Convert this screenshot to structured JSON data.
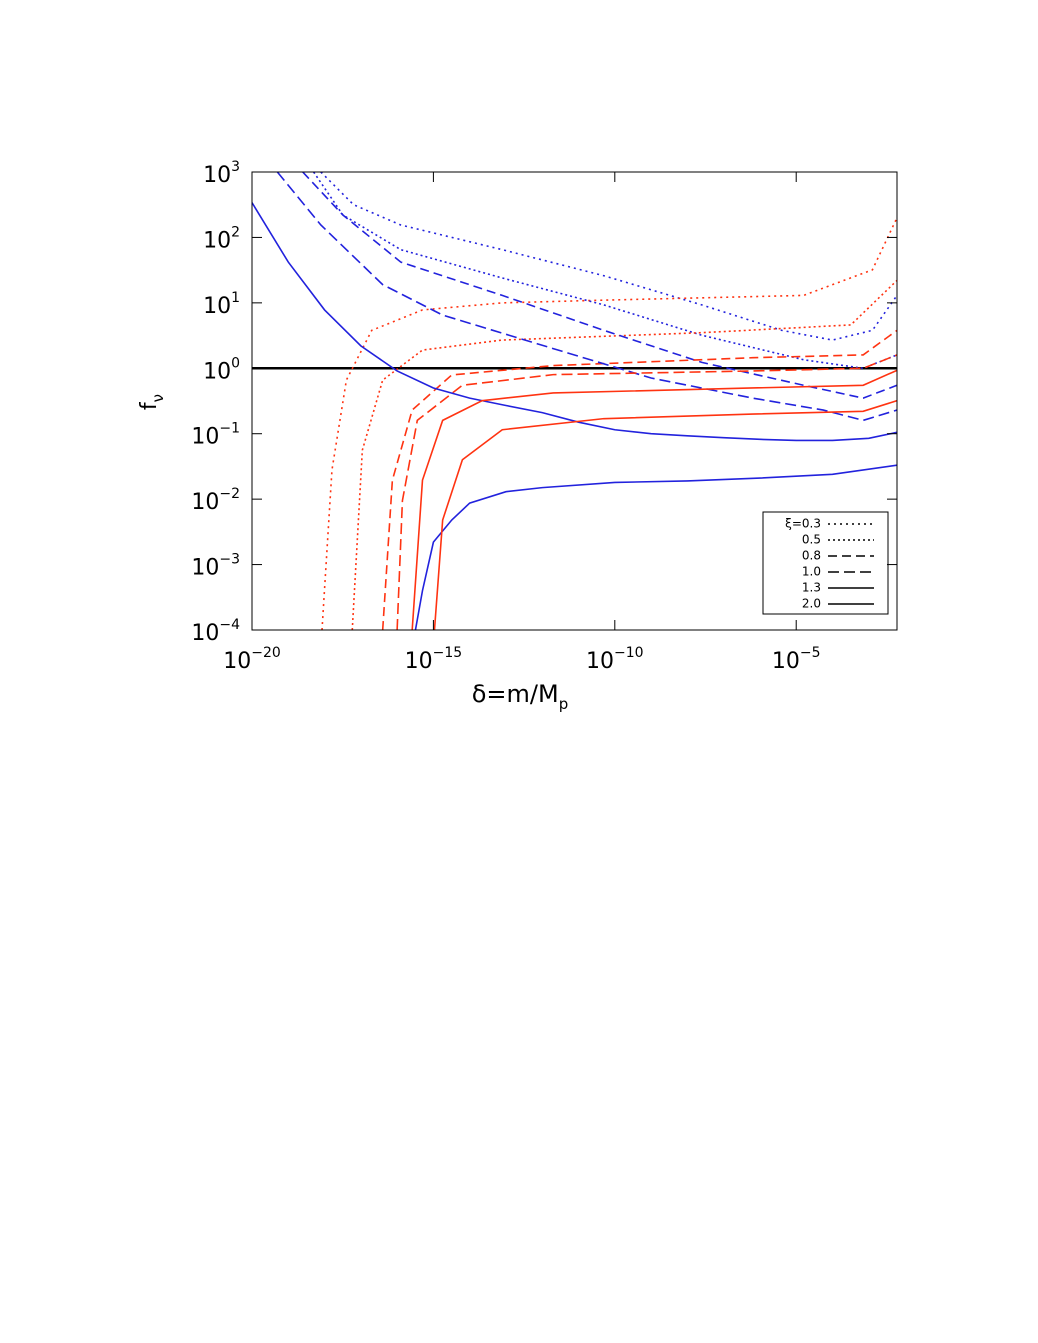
{
  "chart_data": {
    "type": "line",
    "xlabel": {
      "text": "δ=m/M",
      "sub": "p"
    },
    "ylabel": {
      "text": "f",
      "sub": "ν"
    },
    "xscale": "log",
    "yscale": "log",
    "xlim": [
      1e-20,
      0.006
    ],
    "ylim": [
      0.0001,
      1000
    ],
    "xticks": [
      {
        "value": 1e-20,
        "label": "10",
        "exponent": "−20"
      },
      {
        "value": 1e-15,
        "label": "10",
        "exponent": "−15"
      },
      {
        "value": 1e-10,
        "label": "10",
        "exponent": "−10"
      },
      {
        "value": 1e-05,
        "label": "10",
        "exponent": "−5"
      }
    ],
    "yticks": [
      {
        "value": 0.0001,
        "label": "10",
        "exponent": "−4"
      },
      {
        "value": 0.001,
        "label": "10",
        "exponent": "−3"
      },
      {
        "value": 0.01,
        "label": "10",
        "exponent": "−2"
      },
      {
        "value": 0.1,
        "label": "10",
        "exponent": "−1"
      },
      {
        "value": 1,
        "label": "10",
        "exponent": "0"
      },
      {
        "value": 10,
        "label": "10",
        "exponent": "1"
      },
      {
        "value": 100,
        "label": "10",
        "exponent": "2"
      },
      {
        "value": 1000,
        "label": "10",
        "exponent": "3"
      }
    ],
    "legend": "lower right",
    "legend_color": "#000000",
    "reference_line": {
      "y": 1,
      "color": "#000000"
    },
    "series": [
      {
        "name": "ξ=0.3",
        "dash": "2,4",
        "curves": [
          {
            "color": "#2222dd",
            "x": [
              7.9e-19,
              6.3e-18,
              1.26e-16,
              7.9e-14,
              5e-11,
              2.5e-08,
              4e-06,
              0.0001,
              0.00126,
              0.006
            ],
            "values": [
              1000,
              316,
              155,
              65,
              26,
              9.3,
              3.8,
              2.7,
              3.8,
              13
            ]
          },
          {
            "color": "#ff3311",
            "x": [
              8.5e-19,
              1.6e-18,
              4e-18,
              2e-17,
              5e-16,
              7.9e-14,
              5e-11,
              1.6e-05,
              0.00126,
              0.006
            ],
            "values": [
              0.0001,
              0.028,
              0.66,
              3.8,
              7.8,
              10,
              11,
              13,
              32,
              200
            ]
          }
        ]
      },
      {
        "name": "0.5",
        "dash": "2,3",
        "curves": [
          {
            "color": "#2222dd",
            "x": [
              5e-19,
              3.2e-18,
              1.26e-16,
              7.9e-14,
              5e-11,
              2.5e-08,
              1.6e-05,
              0.0007,
              0.006
            ],
            "values": [
              1000,
              220,
              65,
              24,
              9.3,
              3.2,
              1.35,
              1.0,
              1.6
            ]
          },
          {
            "color": "#ff3311",
            "x": [
              5.8e-18,
              1.1e-17,
              4e-17,
              5e-16,
              7.9e-14,
              2.5e-08,
              0.00032,
              0.006
            ],
            "values": [
              0.0001,
              0.056,
              0.66,
              1.9,
              2.7,
              3.5,
              4.6,
              22
            ]
          }
        ]
      },
      {
        "name": "0.8",
        "dash": "9,5",
        "curves": [
          {
            "color": "#2222dd",
            "x": [
              2.5e-19,
              3.2e-18,
              1.26e-16,
              7.9e-14,
              5e-11,
              2.5e-08,
              1.6e-05,
              0.0007,
              0.006
            ],
            "values": [
              1000,
              220,
              42,
              13,
              3.8,
              1.23,
              0.55,
              0.35,
              0.55
            ]
          },
          {
            "color": "#ff3311",
            "x": [
              4e-17,
              7.4e-17,
              2.6e-16,
              3.2e-15,
              2e-12,
              6.3e-07,
              0.0007,
              0.006
            ],
            "values": [
              0.0001,
              0.0195,
              0.23,
              0.79,
              1.1,
              1.45,
              1.6,
              3.8
            ]
          }
        ]
      },
      {
        "name": "1.0",
        "dash": "11,5",
        "curves": [
          {
            "color": "#2222dd",
            "x": [
              5e-20,
              7.9e-19,
              4e-17,
              1.8e-15,
              2e-12,
              1e-09,
              6.3e-07,
              5.6e-05,
              0.0007,
              0.006
            ],
            "values": [
              1000,
              155,
              19,
              6.5,
              2.0,
              0.71,
              0.35,
              0.23,
              0.16,
              0.23
            ]
          },
          {
            "color": "#ff3311",
            "x": [
              1e-16,
              1.4e-16,
              3.6e-16,
              6.3e-15,
              2e-12,
              6.3e-07,
              0.0007,
              0.006
            ],
            "values": [
              0.0001,
              0.0095,
              0.16,
              0.55,
              0.8,
              0.91,
              1.0,
              1.6
            ]
          }
        ]
      },
      {
        "name": "1.3",
        "dash": "none",
        "curves": [
          {
            "color": "#2222dd",
            "x": [
              1e-20,
              1e-19,
              1e-18,
              1e-17,
              1e-16,
              1e-15,
              1e-14,
              1e-13,
              1e-12,
              1e-11,
              1e-10,
              1e-09,
              1e-08,
              1e-07,
              1e-06,
              1e-05,
              0.0001,
              0.001,
              0.006
            ],
            "values": [
              340,
              42,
              7.8,
              2.2,
              0.91,
              0.5,
              0.35,
              0.27,
              0.21,
              0.15,
              0.115,
              0.1,
              0.093,
              0.087,
              0.082,
              0.079,
              0.079,
              0.085,
              0.105
            ]
          },
          {
            "color": "#ff3311",
            "x": [
              2.6e-16,
              5e-16,
              1.8e-15,
              2.2e-14,
              2e-12,
              6.3e-07,
              0.0007,
              0.006
            ],
            "values": [
              0.0001,
              0.0195,
              0.16,
              0.32,
              0.42,
              0.5,
              0.55,
              0.93
            ]
          }
        ]
      },
      {
        "name": "2.0",
        "dash": "none",
        "curves": [
          {
            "color": "#2222dd",
            "x": [
              3.2e-16,
              5e-16,
              1e-15,
              3.2e-15,
              1e-14,
              1e-13,
              1e-12,
              1e-10,
              1e-08,
              1e-06,
              0.0001,
              0.006
            ],
            "values": [
              0.0001,
              0.0004,
              0.0022,
              0.0048,
              0.0087,
              0.013,
              0.015,
              0.018,
              0.019,
              0.021,
              0.024,
              0.033
            ]
          },
          {
            "color": "#ff3311",
            "x": [
              1.07e-15,
              1.8e-15,
              6.3e-15,
              7.9e-14,
              5e-11,
              6.3e-07,
              0.0007,
              0.006
            ],
            "values": [
              0.0001,
              0.0048,
              0.04,
              0.115,
              0.17,
              0.2,
              0.22,
              0.32
            ]
          }
        ]
      }
    ]
  }
}
